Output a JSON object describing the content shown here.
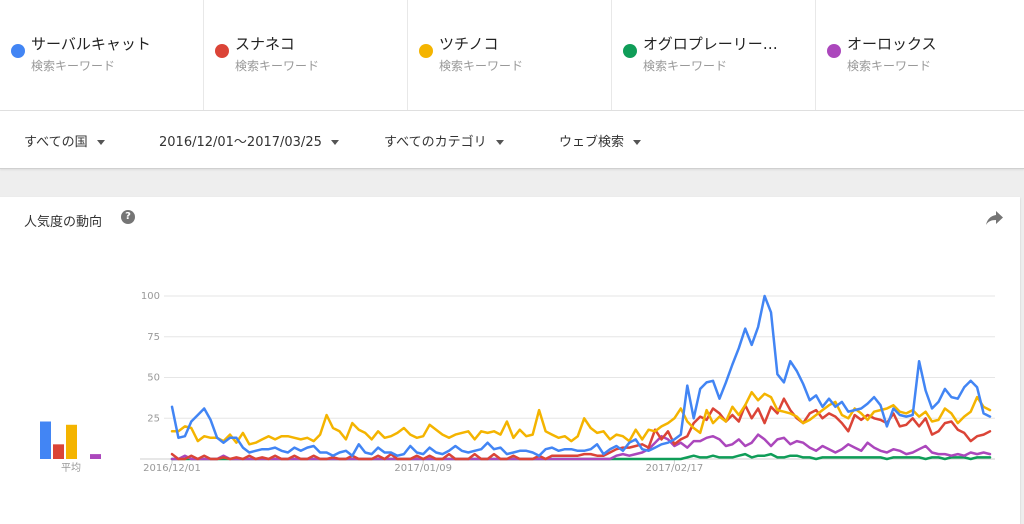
{
  "terms": [
    {
      "name": "サーバルキャット",
      "sub": "検索キーワード",
      "color": "#4285f4"
    },
    {
      "name": "スナネコ",
      "sub": "検索キーワード",
      "color": "#db4437"
    },
    {
      "name": "ツチノコ",
      "sub": "検索キーワード",
      "color": "#f4b400"
    },
    {
      "name": "オグロプレーリー…",
      "sub": "検索キーワード",
      "color": "#0f9d58"
    },
    {
      "name": "オーロックス",
      "sub": "検索キーワード",
      "color": "#ab47bc"
    }
  ],
  "filters": {
    "region": "すべての国",
    "date_range": "2016/12/01～2017/03/25",
    "category": "すべてのカテゴリ",
    "search_type": "ウェブ検索"
  },
  "card": {
    "title": "人気度の動向",
    "help": "?"
  },
  "chart_data": {
    "type": "line",
    "ylim": [
      0,
      100
    ],
    "yticks": [
      "100",
      "75",
      "50",
      "25"
    ],
    "xtick_labels": [
      "2016/12/01",
      "2017/01/09",
      "2017/02/17"
    ],
    "averages_label": "平均",
    "averages": [
      23,
      9,
      21,
      0,
      3
    ],
    "series": [
      {
        "name": "サーバルキャット",
        "color": "#4285f4",
        "values": [
          32,
          13,
          14,
          23,
          27,
          31,
          24,
          13,
          10,
          13,
          13,
          7,
          4,
          5,
          6,
          6,
          7,
          5,
          4,
          7,
          5,
          7,
          8,
          4,
          4,
          2,
          4,
          5,
          2,
          9,
          4,
          3,
          7,
          4,
          4,
          2,
          3,
          8,
          4,
          3,
          7,
          4,
          3,
          5,
          8,
          5,
          4,
          5,
          6,
          10,
          6,
          7,
          3,
          4,
          5,
          5,
          4,
          2,
          6,
          7,
          5,
          6,
          6,
          5,
          5,
          6,
          9,
          3,
          6,
          8,
          5,
          10,
          12,
          6,
          5,
          7,
          9,
          10,
          12,
          15,
          45,
          25,
          43,
          47,
          48,
          37,
          47,
          58,
          68,
          80,
          70,
          81,
          100,
          90,
          52,
          47,
          60,
          54,
          46,
          36,
          39,
          32,
          37,
          32,
          35,
          29,
          30,
          31,
          34,
          38,
          33,
          20,
          31,
          27,
          26,
          27,
          60,
          42,
          31,
          35,
          43,
          38,
          37,
          44,
          48,
          44,
          28,
          26
        ]
      },
      {
        "name": "スナネコ",
        "color": "#db4437",
        "values": [
          3,
          0,
          0,
          2,
          0,
          2,
          0,
          0,
          1,
          0,
          1,
          0,
          2,
          0,
          1,
          0,
          2,
          0,
          0,
          2,
          0,
          0,
          2,
          0,
          0,
          1,
          0,
          0,
          2,
          0,
          0,
          0,
          2,
          0,
          3,
          0,
          0,
          0,
          2,
          0,
          2,
          0,
          0,
          3,
          0,
          0,
          0,
          3,
          0,
          0,
          3,
          0,
          0,
          2,
          0,
          0,
          0,
          2,
          0,
          2,
          2,
          2,
          2,
          2,
          3,
          3,
          2,
          2,
          4,
          6,
          7,
          7,
          8,
          9,
          7,
          18,
          12,
          17,
          9,
          12,
          14,
          22,
          26,
          24,
          31,
          28,
          23,
          27,
          23,
          33,
          25,
          31,
          22,
          32,
          28,
          37,
          30,
          25,
          22,
          28,
          30,
          25,
          28,
          26,
          22,
          17,
          27,
          24,
          27,
          25,
          24,
          22,
          28,
          20,
          21,
          25,
          20,
          25,
          15,
          17,
          22,
          23,
          18,
          16,
          11,
          14,
          15,
          17
        ]
      },
      {
        "name": "ツチノコ",
        "color": "#f4b400",
        "values": [
          17,
          17,
          20,
          19,
          11,
          14,
          13,
          13,
          11,
          15,
          10,
          16,
          9,
          10,
          12,
          14,
          12,
          14,
          14,
          13,
          12,
          13,
          11,
          15,
          27,
          19,
          17,
          12,
          22,
          18,
          16,
          12,
          17,
          13,
          14,
          16,
          19,
          15,
          13,
          14,
          21,
          18,
          15,
          13,
          15,
          16,
          17,
          12,
          17,
          16,
          17,
          15,
          23,
          13,
          18,
          14,
          15,
          30,
          17,
          15,
          13,
          14,
          11,
          14,
          25,
          19,
          16,
          17,
          12,
          15,
          14,
          11,
          18,
          12,
          18,
          17,
          20,
          22,
          25,
          31,
          23,
          19,
          16,
          30,
          22,
          26,
          23,
          32,
          27,
          33,
          41,
          36,
          40,
          38,
          30,
          29,
          28,
          26,
          22,
          24,
          27,
          30,
          33,
          35,
          27,
          25,
          31,
          28,
          24,
          29,
          30,
          31,
          33,
          29,
          28,
          30,
          26,
          29,
          23,
          24,
          31,
          28,
          22,
          26,
          29,
          38,
          32,
          30
        ]
      },
      {
        "name": "オグロプレーリー…",
        "color": "#0f9d58",
        "values": [
          0,
          0,
          0,
          0,
          0,
          0,
          0,
          0,
          0,
          0,
          0,
          0,
          0,
          0,
          0,
          0,
          0,
          0,
          0,
          0,
          0,
          0,
          0,
          0,
          0,
          0,
          0,
          0,
          0,
          0,
          0,
          0,
          0,
          0,
          0,
          0,
          0,
          0,
          0,
          0,
          0,
          0,
          0,
          0,
          0,
          0,
          0,
          0,
          0,
          0,
          0,
          0,
          0,
          0,
          0,
          0,
          0,
          0,
          0,
          0,
          0,
          0,
          0,
          0,
          0,
          0,
          0,
          0,
          0,
          0,
          0,
          0,
          0,
          0,
          0,
          0,
          0,
          0,
          0,
          0,
          1,
          2,
          1,
          1,
          2,
          1,
          1,
          1,
          2,
          3,
          1,
          2,
          2,
          3,
          1,
          1,
          2,
          2,
          1,
          1,
          0,
          1,
          1,
          1,
          1,
          1,
          1,
          1,
          1,
          1,
          1,
          0,
          1,
          1,
          1,
          1,
          1,
          0,
          1,
          1,
          0,
          1,
          1,
          1,
          0,
          1,
          1,
          1
        ]
      },
      {
        "name": "オーロックス",
        "color": "#ab47bc",
        "values": [
          0,
          0,
          2,
          0,
          0,
          0,
          0,
          0,
          2,
          0,
          0,
          0,
          0,
          0,
          0,
          0,
          0,
          0,
          0,
          0,
          0,
          0,
          0,
          0,
          0,
          0,
          0,
          0,
          0,
          0,
          0,
          0,
          0,
          0,
          0,
          0,
          0,
          0,
          0,
          0,
          0,
          0,
          0,
          0,
          0,
          0,
          0,
          0,
          0,
          0,
          0,
          0,
          0,
          0,
          0,
          0,
          0,
          0,
          0,
          0,
          0,
          0,
          0,
          0,
          0,
          0,
          0,
          0,
          0,
          2,
          3,
          2,
          3,
          4,
          6,
          10,
          14,
          12,
          8,
          10,
          7,
          11,
          11,
          13,
          14,
          12,
          8,
          9,
          12,
          8,
          10,
          15,
          12,
          8,
          12,
          13,
          9,
          11,
          10,
          7,
          5,
          8,
          6,
          4,
          6,
          9,
          7,
          5,
          10,
          7,
          5,
          4,
          6,
          5,
          3,
          4,
          6,
          8,
          4,
          3,
          3,
          2,
          3,
          2,
          4,
          3,
          4,
          3
        ]
      }
    ]
  }
}
